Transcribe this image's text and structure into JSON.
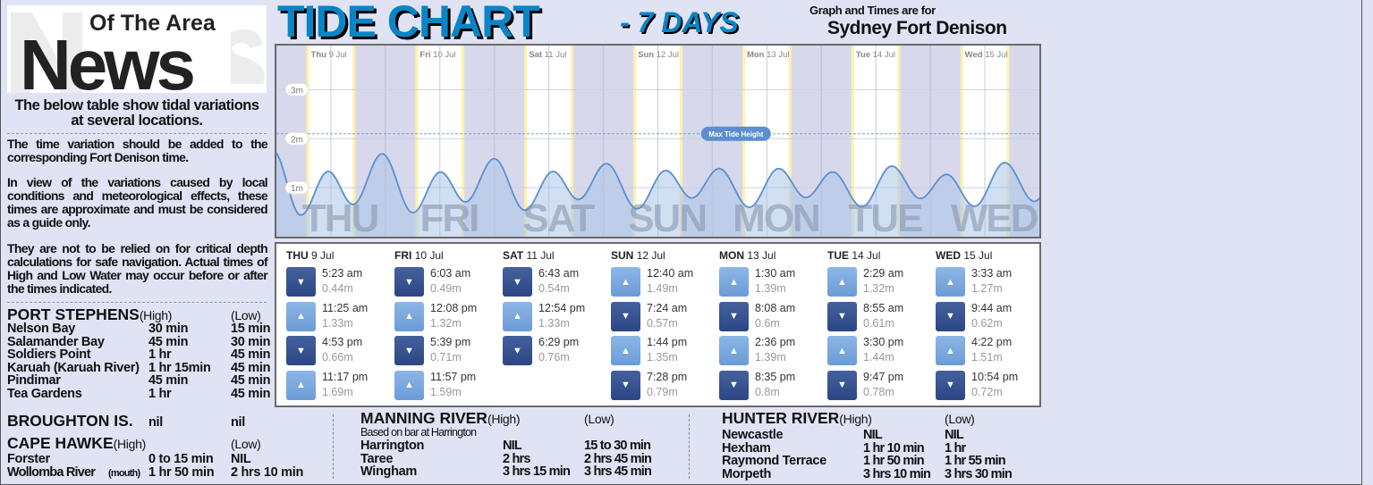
{
  "logo": {
    "small": "Of The Area",
    "big": "News"
  },
  "left": {
    "headline": "The below table show tidal variations at several locations.",
    "paragraphs": [
      "The time variation should be added to the corresponding Fort Denison time.",
      "In view of the variations caused by local conditions and meteorological effects, these times are approximate and must be considered as a guide only.",
      "They are not to be relied on for critical depth calculations for safe navigation. Actual times of High and Low Water may occur before or after the times indicated."
    ]
  },
  "header": {
    "title": "TIDE CHART",
    "subtitle": "- 7 DAYS",
    "for_label": "Graph and Times are for",
    "location": "Sydney Fort Denison"
  },
  "chart_data": {
    "type": "area",
    "ylabel": "",
    "y_ticks": [
      "1m",
      "2m",
      "3m"
    ],
    "ylim": [
      0,
      3.9
    ],
    "x_ticks": [
      {
        "dow": "Thu",
        "date": "9 Jul"
      },
      {
        "dow": "Fri",
        "date": "10 Jul"
      },
      {
        "dow": "Sat",
        "date": "11 Jul"
      },
      {
        "dow": "Sun",
        "date": "12 Jul"
      },
      {
        "dow": "Mon",
        "date": "13 Jul"
      },
      {
        "dow": "Tue",
        "date": "14 Jul"
      },
      {
        "dow": "Wed",
        "date": "15 Jul"
      }
    ],
    "watermarks": [
      "THU",
      "FRI",
      "SAT",
      "SUN",
      "MON",
      "TUE",
      "WED"
    ],
    "max_tide": {
      "label": "Max Tide Height",
      "value": 2.1
    },
    "colors": {
      "line": "#5b8fd0",
      "fill": "#a9c4e8",
      "night": "#d7d8ec",
      "day": "#ffffff",
      "sun_edge": "#fff2a8"
    },
    "grid": true
  },
  "tides": [
    {
      "dow": "THU",
      "date": "9 Jul",
      "entries": [
        {
          "time": "5:23 am",
          "height": "0.44m",
          "type": "low"
        },
        {
          "time": "11:25 am",
          "height": "1.33m",
          "type": "high"
        },
        {
          "time": "4:53 pm",
          "height": "0.66m",
          "type": "low"
        },
        {
          "time": "11:17 pm",
          "height": "1.69m",
          "type": "high"
        }
      ]
    },
    {
      "dow": "FRI",
      "date": "10 Jul",
      "entries": [
        {
          "time": "6:03 am",
          "height": "0.49m",
          "type": "low"
        },
        {
          "time": "12:08 pm",
          "height": "1.32m",
          "type": "high"
        },
        {
          "time": "5:39 pm",
          "height": "0.71m",
          "type": "low"
        },
        {
          "time": "11:57 pm",
          "height": "1.59m",
          "type": "high"
        }
      ]
    },
    {
      "dow": "SAT",
      "date": "11 Jul",
      "entries": [
        {
          "time": "6:43 am",
          "height": "0.54m",
          "type": "low"
        },
        {
          "time": "12:54 pm",
          "height": "1.33m",
          "type": "high"
        },
        {
          "time": "6:29 pm",
          "height": "0.76m",
          "type": "low"
        }
      ]
    },
    {
      "dow": "SUN",
      "date": "12 Jul",
      "entries": [
        {
          "time": "12:40 am",
          "height": "1.49m",
          "type": "high"
        },
        {
          "time": "7:24 am",
          "height": "0.57m",
          "type": "low"
        },
        {
          "time": "1:44 pm",
          "height": "1.35m",
          "type": "high"
        },
        {
          "time": "7:28 pm",
          "height": "0.79m",
          "type": "low"
        }
      ]
    },
    {
      "dow": "MON",
      "date": "13 Jul",
      "entries": [
        {
          "time": "1:30 am",
          "height": "1.39m",
          "type": "high"
        },
        {
          "time": "8:08 am",
          "height": "0.6m",
          "type": "low"
        },
        {
          "time": "2:36 pm",
          "height": "1.39m",
          "type": "high"
        },
        {
          "time": "8:35 pm",
          "height": "0.8m",
          "type": "low"
        }
      ]
    },
    {
      "dow": "TUE",
      "date": "14 Jul",
      "entries": [
        {
          "time": "2:29 am",
          "height": "1.32m",
          "type": "high"
        },
        {
          "time": "8:55 am",
          "height": "0.61m",
          "type": "low"
        },
        {
          "time": "3:30 pm",
          "height": "1.44m",
          "type": "high"
        },
        {
          "time": "9:47 pm",
          "height": "0.78m",
          "type": "low"
        }
      ]
    },
    {
      "dow": "WED",
      "date": "15 Jul",
      "entries": [
        {
          "time": "3:33 am",
          "height": "1.27m",
          "type": "high"
        },
        {
          "time": "9:44 am",
          "height": "0.62m",
          "type": "low"
        },
        {
          "time": "4:22 pm",
          "height": "1.51m",
          "type": "high"
        },
        {
          "time": "10:54 pm",
          "height": "0.72m",
          "type": "low"
        }
      ]
    }
  ],
  "port_stephens": {
    "name": "PORT STEPHENS",
    "high": "(High)",
    "low": "(Low)",
    "rows": [
      [
        "Nelson Bay",
        "30 min",
        "15 min"
      ],
      [
        "Salamander Bay",
        "45 min",
        "30 min"
      ],
      [
        "Soldiers Point",
        "1 hr",
        "45 min"
      ],
      [
        "Karuah (Karuah River)",
        "1 hr 15min",
        "45 min"
      ],
      [
        "Pindimar",
        "45 min",
        "45 min"
      ],
      [
        "Tea Gardens",
        "1 hr",
        "45 min"
      ]
    ]
  },
  "broughton": {
    "name": "BROUGHTON IS.",
    "high": "nil",
    "low": "nil"
  },
  "cape_hawke": {
    "name": "CAPE HAWKE",
    "high": "(High)",
    "low": "(Low)",
    "rows": [
      [
        "Forster",
        "0 to 15 min",
        "NIL"
      ],
      [
        "Wollomba River",
        "1 hr 50 min",
        "2 hrs 10 min"
      ]
    ],
    "mouth": "(mouth)"
  },
  "manning": {
    "name": "MANNING RIVER",
    "high": "(High)",
    "low": "(Low)",
    "note": "Based on bar at Harrington",
    "rows": [
      [
        "Harrington",
        "NIL",
        "15 to 30 min"
      ],
      [
        "Taree",
        "2 hrs",
        "2 hrs 45 min"
      ],
      [
        "Wingham",
        "3 hrs 15 min",
        "3 hrs 45 min"
      ]
    ]
  },
  "hunter": {
    "name": "HUNTER RIVER",
    "high": "(High)",
    "low": "(Low)",
    "rows": [
      [
        "Newcastle",
        "NIL",
        "NIL"
      ],
      [
        "Hexham",
        "1 hr 10 min",
        "1 hr"
      ],
      [
        "Raymond Terrace",
        "1 hr 50 min",
        "1 hr 55 min"
      ],
      [
        "Morpeth",
        "3 hrs 10 min",
        "3 hrs 30 min"
      ]
    ]
  }
}
